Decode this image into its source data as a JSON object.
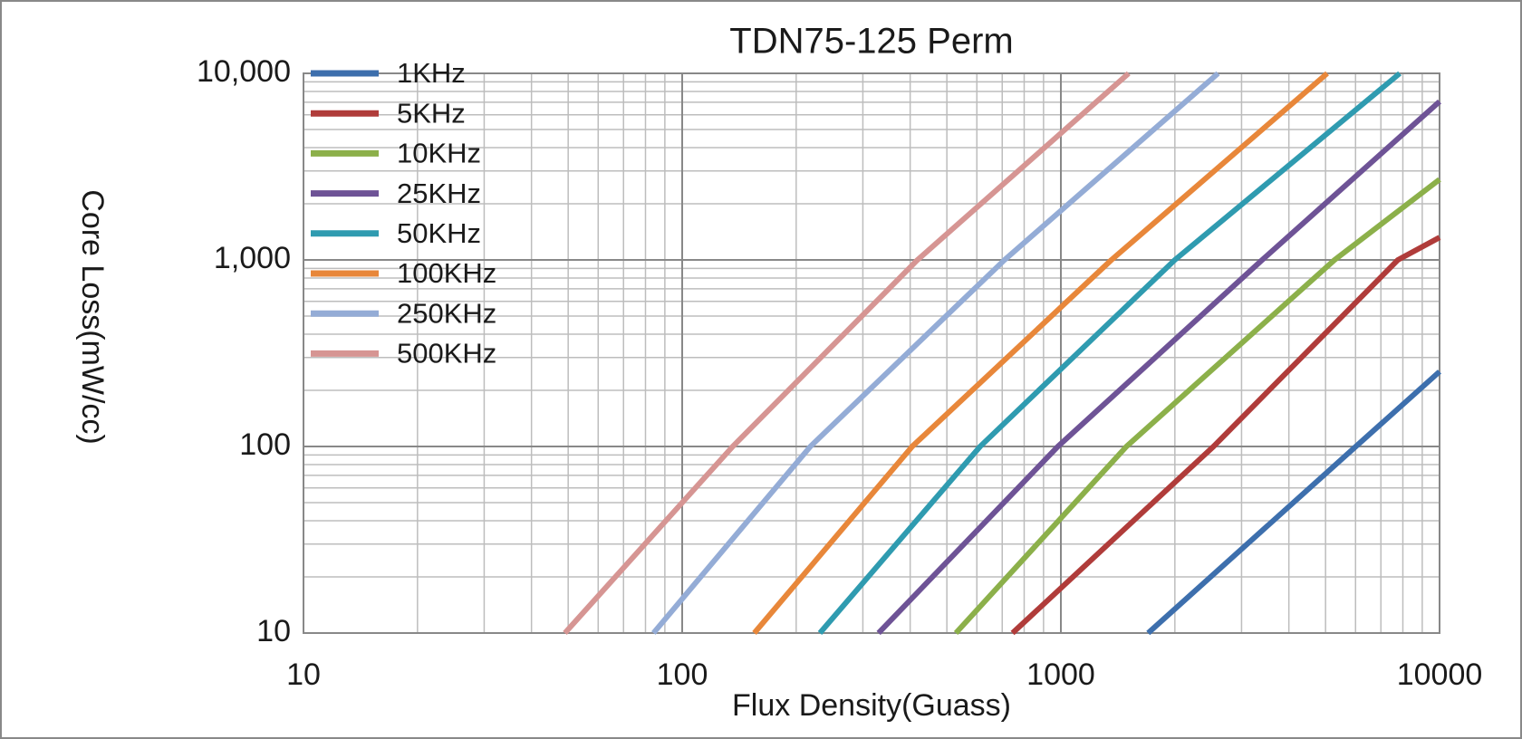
{
  "chart_data": {
    "type": "line",
    "title": "TDN75-125 Perm",
    "x_label": "Flux Density(Guass)",
    "y_label": "Core Loss(mW/cc)",
    "x_log": true,
    "y_log": true,
    "grid": true,
    "legend": "upper left",
    "xlim": [
      10,
      10000
    ],
    "xticks": [
      10,
      100,
      1000,
      10000
    ],
    "ylim": [
      10,
      10000
    ],
    "yticks": [
      10,
      100,
      {
        "value": 1000,
        "label": "1,000"
      },
      {
        "value": 10000,
        "label": "10,000"
      }
    ],
    "series": [
      {
        "name": "1KHz",
        "color": "#3d6fad",
        "x": [
          1700,
          6010,
          10000
        ],
        "values": [
          10,
          100,
          252
        ]
      },
      {
        "name": "5KHz",
        "color": "#b03c3a",
        "x": [
          745,
          2530,
          7760,
          10000
        ],
        "values": [
          10,
          100,
          1000,
          1320
        ]
      },
      {
        "name": "10KHz",
        "color": "#8cb04a",
        "x": [
          528,
          1490,
          5280,
          10000
        ],
        "values": [
          10,
          100,
          1000,
          2700
        ]
      },
      {
        "name": "25KHz",
        "color": "#6e5396",
        "x": [
          330,
          982,
          3400,
          10000
        ],
        "values": [
          10,
          100,
          1000,
          7060
        ]
      },
      {
        "name": "50KHz",
        "color": "#2f9bb0",
        "x": [
          231,
          612,
          2000,
          7850
        ],
        "values": [
          10,
          100,
          1000,
          10000
        ]
      },
      {
        "name": "100KHz",
        "color": "#e8873a",
        "x": [
          155,
          405,
          1360,
          5050
        ],
        "values": [
          10,
          100,
          1000,
          10000
        ]
      },
      {
        "name": "250KHz",
        "color": "#94acd6",
        "x": [
          84,
          218,
          710,
          2600
        ],
        "values": [
          10,
          100,
          1000,
          10000
        ]
      },
      {
        "name": "500KHz",
        "color": "#d69593",
        "x": [
          49,
          136,
          418,
          1510
        ],
        "values": [
          10,
          100,
          1000,
          10000
        ]
      }
    ]
  }
}
